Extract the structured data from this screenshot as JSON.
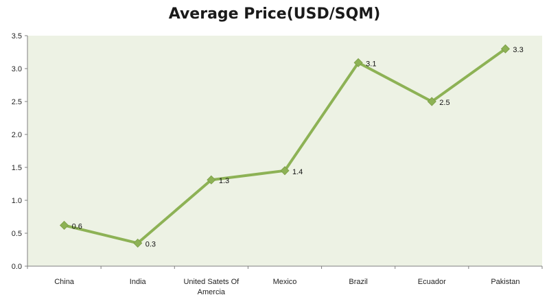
{
  "chart_data": {
    "type": "line",
    "title": "Average Price(USD/SQM)",
    "xlabel": "",
    "ylabel": "",
    "categories": [
      "China",
      "India",
      "United Satets Of Amercia",
      "Mexico",
      "Brazil",
      "Ecuador",
      "Pakistan"
    ],
    "category_lines": [
      [
        "China"
      ],
      [
        "India"
      ],
      [
        "United Satets Of",
        "Amercia"
      ],
      [
        "Mexico"
      ],
      [
        "Brazil"
      ],
      [
        "Ecuador"
      ],
      [
        "Pakistan"
      ]
    ],
    "values": [
      0.62,
      0.35,
      1.31,
      1.45,
      3.09,
      2.5,
      3.3
    ],
    "data_labels": [
      "0.6",
      "0.3",
      "1.3",
      "1.4",
      "3.1",
      "2.5",
      "3.3"
    ],
    "ylim": [
      0,
      3.5
    ],
    "yticks": [
      "0.0",
      "0.5",
      "1.0",
      "1.5",
      "2.0",
      "2.5",
      "3.0",
      "3.5"
    ],
    "grid": false,
    "legend": "none",
    "colors": {
      "line": "#8DB255",
      "marker": "#8DB255",
      "plot_bg": "#EDF2E4",
      "axis": "#7f7f7f"
    }
  }
}
